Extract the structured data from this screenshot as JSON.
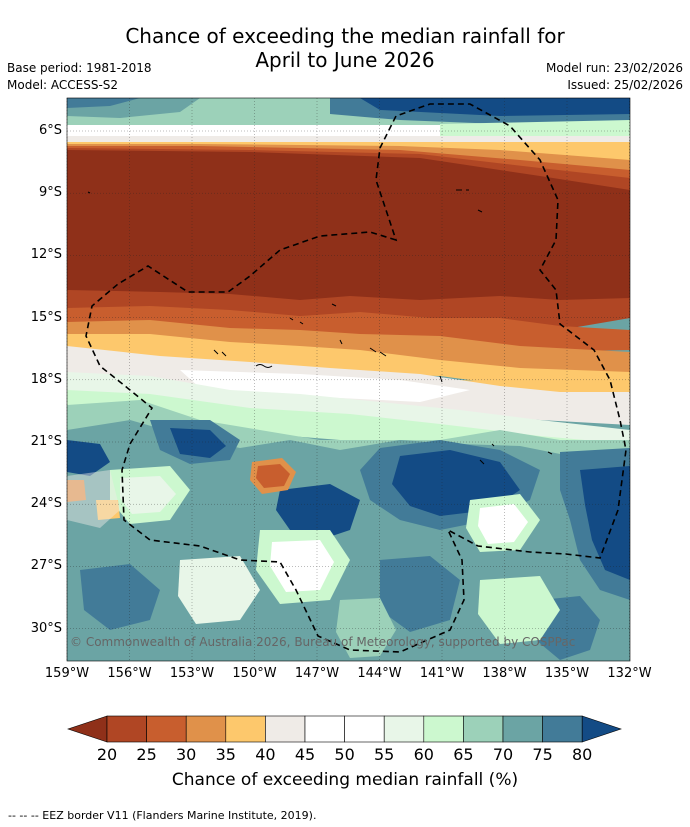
{
  "header": {
    "title_line1": "Chance of exceeding the median rainfall for",
    "title_line2": "April to June 2026",
    "base_period": "Base period: 1981-2018",
    "model": "Model: ACCESS-S2",
    "model_run": "Model run: 23/02/2026",
    "issued": "Issued: 25/02/2026"
  },
  "map": {
    "lat_labels": [
      "6°S",
      "9°S",
      "12°S",
      "15°S",
      "18°S",
      "21°S",
      "24°S",
      "27°S",
      "30°S"
    ],
    "lon_labels": [
      "159°W",
      "156°W",
      "153°W",
      "150°W",
      "147°W",
      "144°W",
      "141°W",
      "138°W",
      "135°W",
      "132°W"
    ],
    "copyright": "© Commonwealth of Australia 2026, Bureau of Meteorology, supported by COSPPac",
    "eez_style": "dashed black line",
    "colors": {
      "p15": "#8f3019",
      "p20": "#b04624",
      "p25": "#c85e2e",
      "p30": "#e0914a",
      "p35": "#fdc86c",
      "p40": "#efebe7",
      "p45": "#ffffff",
      "p55": "#e8f6e8",
      "p60": "#ccf8cf",
      "p65": "#9cd1b9",
      "p70": "#6ba4a4",
      "p75": "#427b98",
      "p80": "#134b85"
    }
  },
  "colorbar": {
    "ticks": [
      "20",
      "25",
      "30",
      "35",
      "40",
      "45",
      "50",
      "55",
      "60",
      "65",
      "70",
      "75",
      "80"
    ],
    "label": "Chance of exceeding median rainfall (%)"
  },
  "footer": "--  --  -- EEZ border V11 (Flanders Marine Institute, 2019)."
}
